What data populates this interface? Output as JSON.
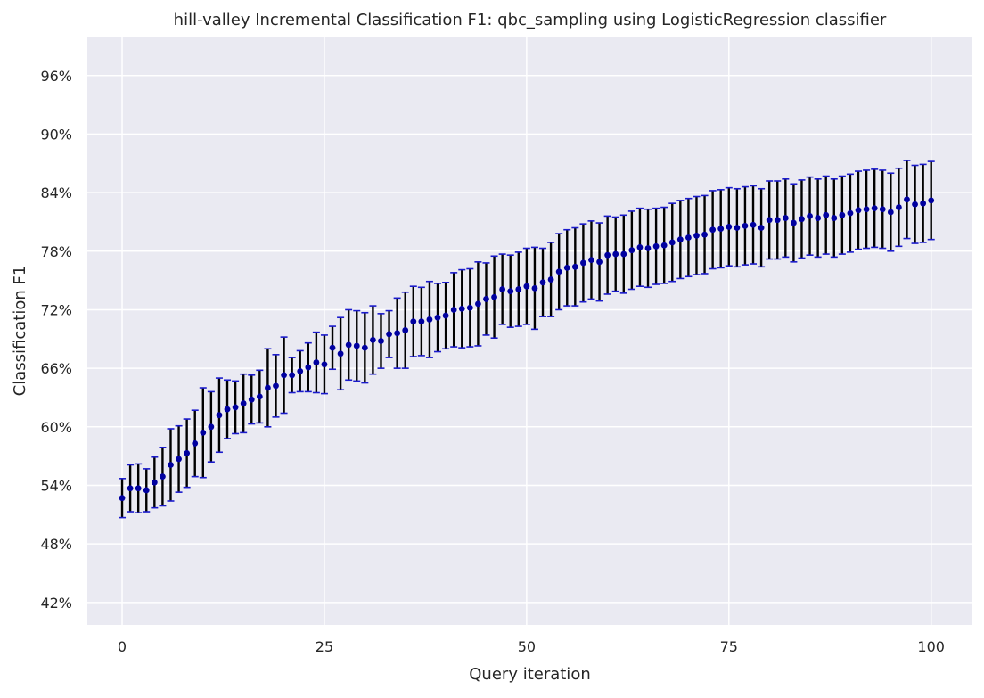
{
  "chart_data": {
    "type": "scatter",
    "title": "hill-valley Incremental Classification F1: qbc_sampling using LogisticRegression classifier",
    "xlabel": "Query iteration",
    "ylabel": "Classification F1",
    "xlim": [
      -4.3,
      105.1
    ],
    "ylim": [
      0.397,
      1.0
    ],
    "x_ticks": [
      0,
      25,
      50,
      75,
      100
    ],
    "x_tick_labels": [
      "0",
      "25",
      "50",
      "75",
      "100"
    ],
    "y_ticks": [
      0.42,
      0.48,
      0.54,
      0.6,
      0.66,
      0.72,
      0.78,
      0.84,
      0.9,
      0.96
    ],
    "y_tick_labels": [
      "42%",
      "48%",
      "54%",
      "60%",
      "66%",
      "72%",
      "78%",
      "84%",
      "90%",
      "96%"
    ],
    "grid": true,
    "background_color": "#eaeaf2",
    "grid_color": "#ffffff",
    "marker_color": "#0000a0",
    "errorbar_color": "#000000",
    "cap_color": "#1a1acc",
    "series": [
      {
        "x": [
          0,
          1,
          2,
          3,
          4,
          5,
          6,
          7,
          8,
          9,
          10,
          11,
          12,
          13,
          14,
          15,
          16,
          17,
          18,
          19,
          20,
          21,
          22,
          23,
          24,
          25,
          26,
          27,
          28,
          29,
          30,
          31,
          32,
          33,
          34,
          35,
          36,
          37,
          38,
          39,
          40,
          41,
          42,
          43,
          44,
          45,
          46,
          47,
          48,
          49,
          50,
          51,
          52,
          53,
          54,
          55,
          56,
          57,
          58,
          59,
          60,
          61,
          62,
          63,
          64,
          65,
          66,
          67,
          68,
          69,
          70,
          71,
          72,
          73,
          74,
          75,
          76,
          77,
          78,
          79,
          80,
          81,
          82,
          83,
          84,
          85,
          86,
          87,
          88,
          89,
          90,
          91,
          92,
          93,
          94,
          95,
          96,
          97,
          98,
          99,
          100
        ],
        "y": [
          0.527,
          0.537,
          0.537,
          0.535,
          0.543,
          0.549,
          0.561,
          0.567,
          0.573,
          0.583,
          0.594,
          0.6,
          0.612,
          0.618,
          0.62,
          0.624,
          0.628,
          0.631,
          0.64,
          0.642,
          0.653,
          0.653,
          0.657,
          0.661,
          0.666,
          0.664,
          0.681,
          0.675,
          0.684,
          0.683,
          0.681,
          0.689,
          0.688,
          0.695,
          0.696,
          0.699,
          0.708,
          0.708,
          0.71,
          0.712,
          0.714,
          0.72,
          0.721,
          0.722,
          0.726,
          0.731,
          0.733,
          0.741,
          0.739,
          0.741,
          0.744,
          0.742,
          0.748,
          0.751,
          0.759,
          0.763,
          0.764,
          0.768,
          0.771,
          0.769,
          0.776,
          0.777,
          0.777,
          0.781,
          0.784,
          0.783,
          0.785,
          0.786,
          0.789,
          0.792,
          0.794,
          0.796,
          0.797,
          0.802,
          0.803,
          0.805,
          0.804,
          0.806,
          0.807,
          0.804,
          0.812,
          0.812,
          0.814,
          0.809,
          0.813,
          0.816,
          0.814,
          0.817,
          0.814,
          0.817,
          0.819,
          0.822,
          0.823,
          0.824,
          0.823,
          0.82,
          0.825,
          0.833,
          0.828,
          0.829,
          0.832
        ],
        "err": [
          0.02,
          0.024,
          0.025,
          0.022,
          0.026,
          0.03,
          0.037,
          0.034,
          0.035,
          0.034,
          0.046,
          0.036,
          0.038,
          0.03,
          0.027,
          0.03,
          0.025,
          0.027,
          0.04,
          0.032,
          0.039,
          0.018,
          0.021,
          0.025,
          0.031,
          0.03,
          0.022,
          0.037,
          0.036,
          0.036,
          0.036,
          0.035,
          0.028,
          0.024,
          0.036,
          0.039,
          0.036,
          0.035,
          0.039,
          0.035,
          0.034,
          0.038,
          0.04,
          0.04,
          0.043,
          0.037,
          0.042,
          0.036,
          0.037,
          0.038,
          0.039,
          0.042,
          0.035,
          0.038,
          0.039,
          0.039,
          0.04,
          0.04,
          0.04,
          0.04,
          0.04,
          0.038,
          0.04,
          0.04,
          0.04,
          0.04,
          0.039,
          0.039,
          0.04,
          0.04,
          0.04,
          0.04,
          0.04,
          0.04,
          0.04,
          0.04,
          0.04,
          0.04,
          0.04,
          0.04,
          0.04,
          0.04,
          0.04,
          0.04,
          0.04,
          0.04,
          0.04,
          0.04,
          0.04,
          0.04,
          0.04,
          0.04,
          0.04,
          0.04,
          0.04,
          0.04,
          0.04,
          0.04,
          0.04,
          0.04,
          0.04
        ]
      }
    ]
  }
}
